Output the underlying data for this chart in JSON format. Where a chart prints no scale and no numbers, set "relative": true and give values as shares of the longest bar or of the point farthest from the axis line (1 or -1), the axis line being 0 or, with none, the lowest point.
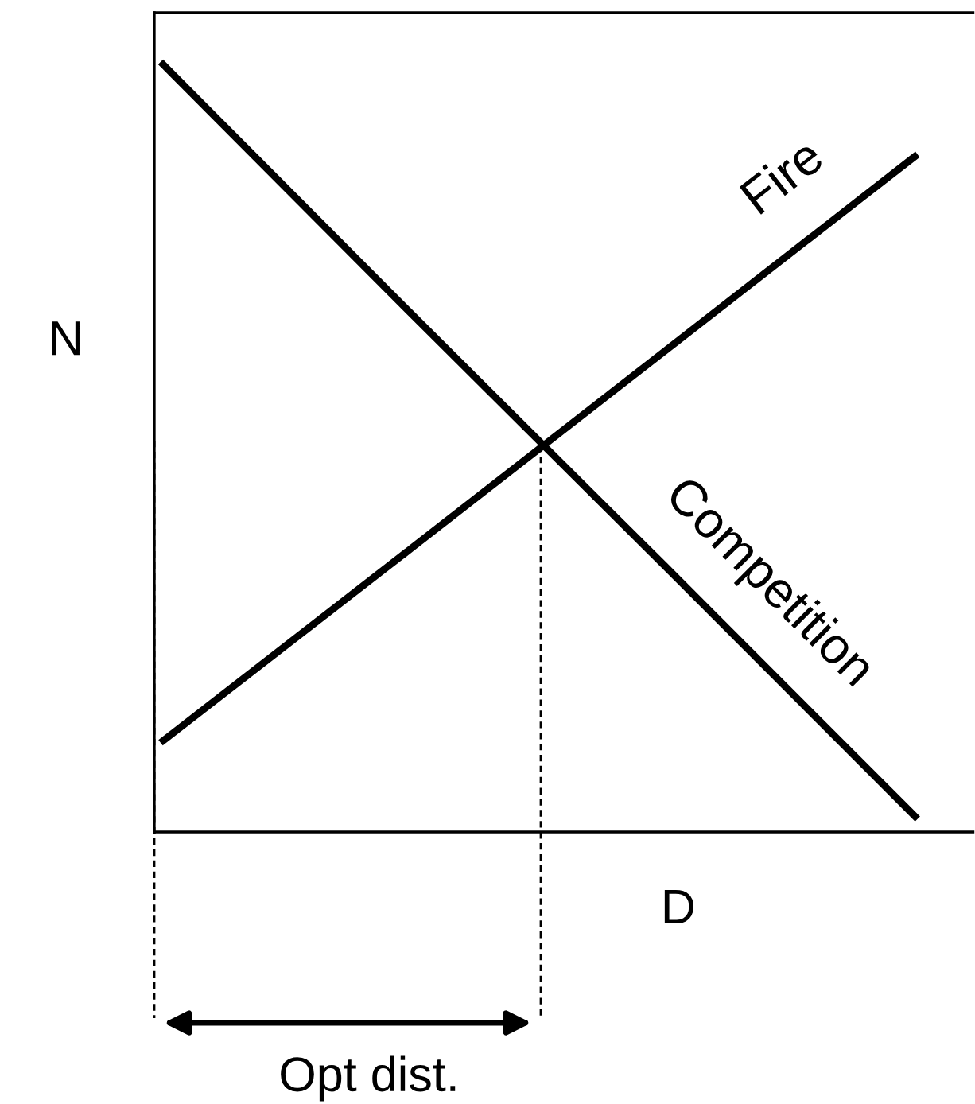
{
  "chart_data": {
    "type": "line",
    "relative": true,
    "xlabel": "D",
    "ylabel": "N",
    "categories": [
      null,
      null,
      null,
      null
    ],
    "series": [
      {
        "name": "Competition",
        "color": "#000000",
        "values": [
          1.0,
          0.671,
          0.345,
          0.017
        ]
      },
      {
        "name": "Fire",
        "color": "#000000",
        "values": [
          0.116,
          0.37,
          0.625,
          0.88
        ]
      }
    ],
    "annotations": [
      "Opt dist."
    ],
    "legend": false,
    "marker": "none",
    "line_style": "solid"
  }
}
